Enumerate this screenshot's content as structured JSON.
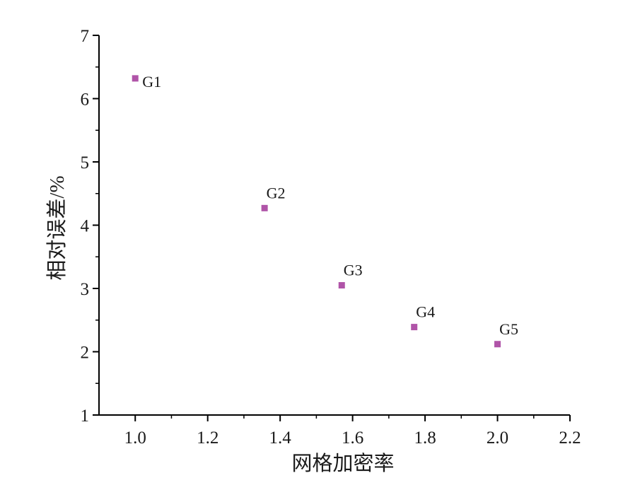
{
  "chart_data": {
    "type": "scatter",
    "title": "",
    "xlabel": "网格加密率",
    "ylabel": "相对误差/%",
    "xlim": [
      0.9,
      2.2
    ],
    "ylim": [
      1,
      7
    ],
    "xticks": [
      "1.0",
      "1.2",
      "1.4",
      "1.6",
      "1.8",
      "2.0",
      "2.2"
    ],
    "yticks": [
      "1",
      "2",
      "3",
      "4",
      "5",
      "6",
      "7"
    ],
    "grid": false,
    "legend": "none",
    "marker_color": "#b054a8",
    "points": [
      {
        "label": "G1",
        "x": 1.0,
        "y": 6.32
      },
      {
        "label": "G2",
        "x": 1.357,
        "y": 4.27
      },
      {
        "label": "G3",
        "x": 1.57,
        "y": 3.05
      },
      {
        "label": "G4",
        "x": 1.77,
        "y": 2.39
      },
      {
        "label": "G5",
        "x": 2.0,
        "y": 2.12
      }
    ]
  }
}
